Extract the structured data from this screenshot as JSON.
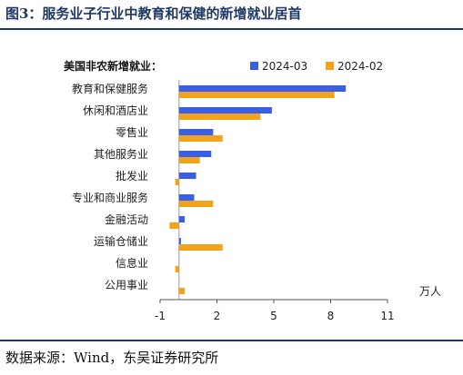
{
  "figure": {
    "title": "图3：服务业子行业中教育和保健的新增就业居首",
    "source": "数据来源：Wind，东吴证券研究所"
  },
  "colors": {
    "series_2024_03": "#3a5fe5",
    "series_2024_02": "#f5a21b",
    "rule": "#1f3864"
  },
  "chart_data": {
    "type": "bar",
    "orientation": "horizontal",
    "title": "美国非农新增就业：",
    "unit": "万人",
    "categories": [
      "教育和保健服务",
      "休闲和酒店业",
      "零售业",
      "其他服务业",
      "批发业",
      "专业和商业服务",
      "金融活动",
      "运输仓储业",
      "信息业",
      "公用事业"
    ],
    "series": [
      {
        "name": "2024-03",
        "color": "#3a5fe5",
        "values": [
          8.8,
          4.9,
          1.8,
          1.7,
          0.9,
          0.8,
          0.3,
          0.1,
          0.0,
          0.0
        ]
      },
      {
        "name": "2024-02",
        "color": "#f5a21b",
        "values": [
          8.2,
          4.3,
          2.3,
          1.1,
          -0.2,
          1.8,
          -0.5,
          2.3,
          -0.2,
          0.3
        ]
      }
    ],
    "xlim": [
      -1,
      11
    ],
    "xticks": [
      "-1",
      "2",
      "5",
      "8",
      "11"
    ],
    "grid": false,
    "legend_position": "top-right"
  }
}
